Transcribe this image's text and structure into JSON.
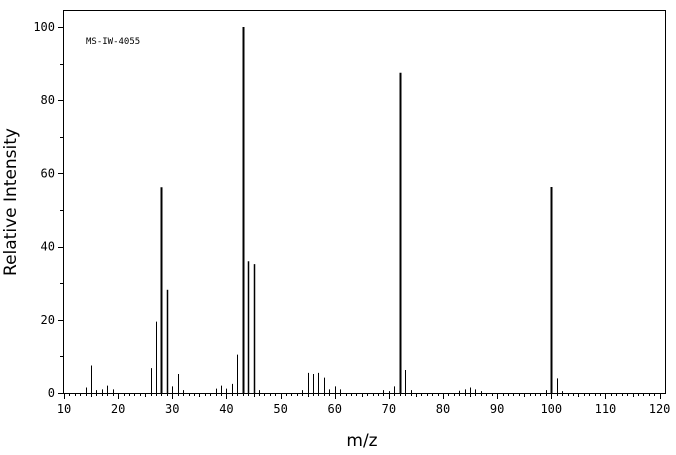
{
  "chart_data": {
    "type": "bar",
    "title": "",
    "annotation": "MS-IW-4055",
    "xlabel": "m/z",
    "ylabel": "Relative Intensity",
    "xlim": [
      10,
      121
    ],
    "ylim": [
      0,
      100
    ],
    "x_ticks": [
      10,
      20,
      30,
      40,
      50,
      60,
      70,
      80,
      90,
      100,
      110,
      120
    ],
    "y_ticks": [
      0,
      20,
      40,
      60,
      80,
      100
    ],
    "grid": false,
    "peaks": {
      "x": [
        14,
        15,
        16,
        17,
        18,
        19,
        26,
        27,
        28,
        29,
        30,
        31,
        32,
        38,
        39,
        40,
        41,
        42,
        43,
        44,
        45,
        46,
        54,
        55,
        56,
        57,
        58,
        59,
        60,
        61,
        69,
        70,
        71,
        72,
        73,
        74,
        83,
        84,
        85,
        86,
        87,
        99,
        100,
        101,
        102
      ],
      "y": [
        1.5,
        7.5,
        0.8,
        1.0,
        2.0,
        1.0,
        6.8,
        19.5,
        56.2,
        28.2,
        1.8,
        5.2,
        0.8,
        1.2,
        2.0,
        1.2,
        2.5,
        10.5,
        100,
        36.0,
        35.2,
        0.8,
        0.8,
        5.5,
        5.2,
        5.5,
        4.2,
        1.0,
        1.8,
        1.0,
        0.8,
        0.5,
        1.8,
        87.5,
        6.3,
        0.8,
        0.6,
        1.0,
        1.5,
        1.0,
        0.5,
        0.8,
        56.3,
        4.0,
        0.5
      ]
    }
  }
}
